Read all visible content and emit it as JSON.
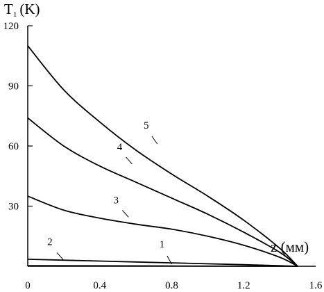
{
  "chart_data": {
    "type": "line",
    "ylabel": "T",
    "ylabel_subscript": "1",
    "ylabel_unit": "(K)",
    "xlabel": "z (мм)",
    "xlim": [
      0,
      1.6
    ],
    "ylim": [
      0,
      120
    ],
    "xticks": [
      0,
      0.4,
      0.8,
      1.2,
      1.6
    ],
    "xtick_labels": [
      "0",
      "0.4",
      "0.8",
      "1.2",
      "1.6"
    ],
    "yticks": [
      30,
      60,
      90,
      120
    ],
    "ytick_labels": [
      "30",
      "60",
      "90",
      "120"
    ],
    "grid": false,
    "legend": "none",
    "series": [
      {
        "name": "1",
        "x": [
          0,
          1.5
        ],
        "y": [
          0.3,
          0
        ]
      },
      {
        "name": "2",
        "x": [
          0,
          0.4,
          0.8,
          1.2,
          1.5
        ],
        "y": [
          3.5,
          2.6,
          1.7,
          0.8,
          0
        ]
      },
      {
        "name": "3",
        "x": [
          0,
          0.2,
          0.4,
          0.6,
          0.8,
          1.0,
          1.2,
          1.4,
          1.5
        ],
        "y": [
          35,
          28,
          24,
          21,
          18.5,
          15,
          10.5,
          4.5,
          0
        ]
      },
      {
        "name": "4",
        "x": [
          0,
          0.2,
          0.4,
          0.6,
          0.8,
          1.0,
          1.2,
          1.4,
          1.5
        ],
        "y": [
          74,
          60,
          50,
          42,
          34,
          26,
          17,
          7,
          0
        ]
      },
      {
        "name": "5",
        "x": [
          0,
          0.2,
          0.4,
          0.6,
          0.8,
          1.0,
          1.2,
          1.4,
          1.5
        ],
        "y": [
          110,
          88,
          72,
          58,
          46,
          35,
          23,
          9,
          0
        ]
      }
    ],
    "annotations": [
      {
        "text": "1",
        "x": 0.8,
        "y": 1.0
      },
      {
        "text": "2",
        "x": 0.2,
        "y": 3.0
      },
      {
        "text": "3",
        "x": 0.56,
        "y": 24.5
      },
      {
        "text": "4",
        "x": 0.58,
        "y": 51
      },
      {
        "text": "5",
        "x": 0.72,
        "y": 61
      }
    ]
  }
}
